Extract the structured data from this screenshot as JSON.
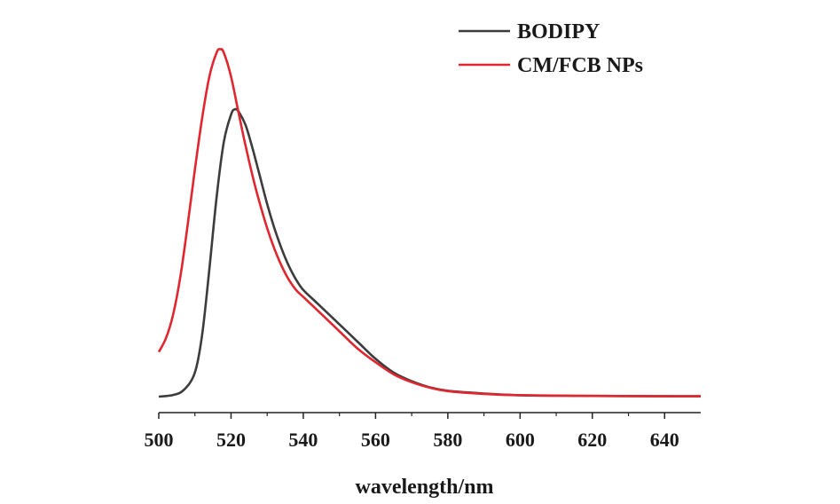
{
  "chart_data": {
    "type": "line",
    "xlabel": "wavelength/nm",
    "ylabel": "",
    "xlim": [
      500,
      650
    ],
    "ylim": [
      0,
      1.05
    ],
    "x_ticks": [
      "500",
      "520",
      "540",
      "560",
      "580",
      "600",
      "620",
      "640"
    ],
    "y_ticks_shown": false,
    "grid": false,
    "legend_position": "top-right",
    "series": [
      {
        "name": "BODIPY",
        "color": "#3c3c3c",
        "x": [
          500,
          504,
          507,
          510,
          512,
          514,
          516,
          518,
          520,
          521,
          522,
          524,
          526,
          528,
          530,
          532,
          534,
          536,
          538,
          540,
          543,
          546,
          550,
          555,
          560,
          565,
          570,
          575,
          580,
          590,
          600,
          620,
          650
        ],
        "y": [
          0.0,
          0.005,
          0.02,
          0.07,
          0.18,
          0.37,
          0.58,
          0.74,
          0.82,
          0.835,
          0.83,
          0.79,
          0.72,
          0.64,
          0.56,
          0.49,
          0.43,
          0.38,
          0.34,
          0.31,
          0.28,
          0.25,
          0.21,
          0.16,
          0.11,
          0.07,
          0.045,
          0.027,
          0.017,
          0.009,
          0.004,
          0.002,
          0.001
        ]
      },
      {
        "name": "CM/FCB NPs",
        "color": "#e0262e",
        "x": [
          500,
          502,
          504,
          506,
          508,
          510,
          512,
          514,
          516,
          517,
          518,
          520,
          522,
          524,
          526,
          528,
          530,
          532,
          534,
          536,
          538,
          540,
          543,
          546,
          550,
          555,
          560,
          565,
          570,
          575,
          580,
          590,
          600,
          620,
          650
        ],
        "y": [
          0.13,
          0.17,
          0.24,
          0.35,
          0.5,
          0.66,
          0.81,
          0.93,
          1.0,
          1.01,
          1.0,
          0.93,
          0.83,
          0.73,
          0.64,
          0.56,
          0.49,
          0.43,
          0.38,
          0.34,
          0.31,
          0.29,
          0.26,
          0.23,
          0.19,
          0.14,
          0.1,
          0.065,
          0.042,
          0.026,
          0.016,
          0.008,
          0.004,
          0.002,
          0.001
        ]
      }
    ]
  }
}
